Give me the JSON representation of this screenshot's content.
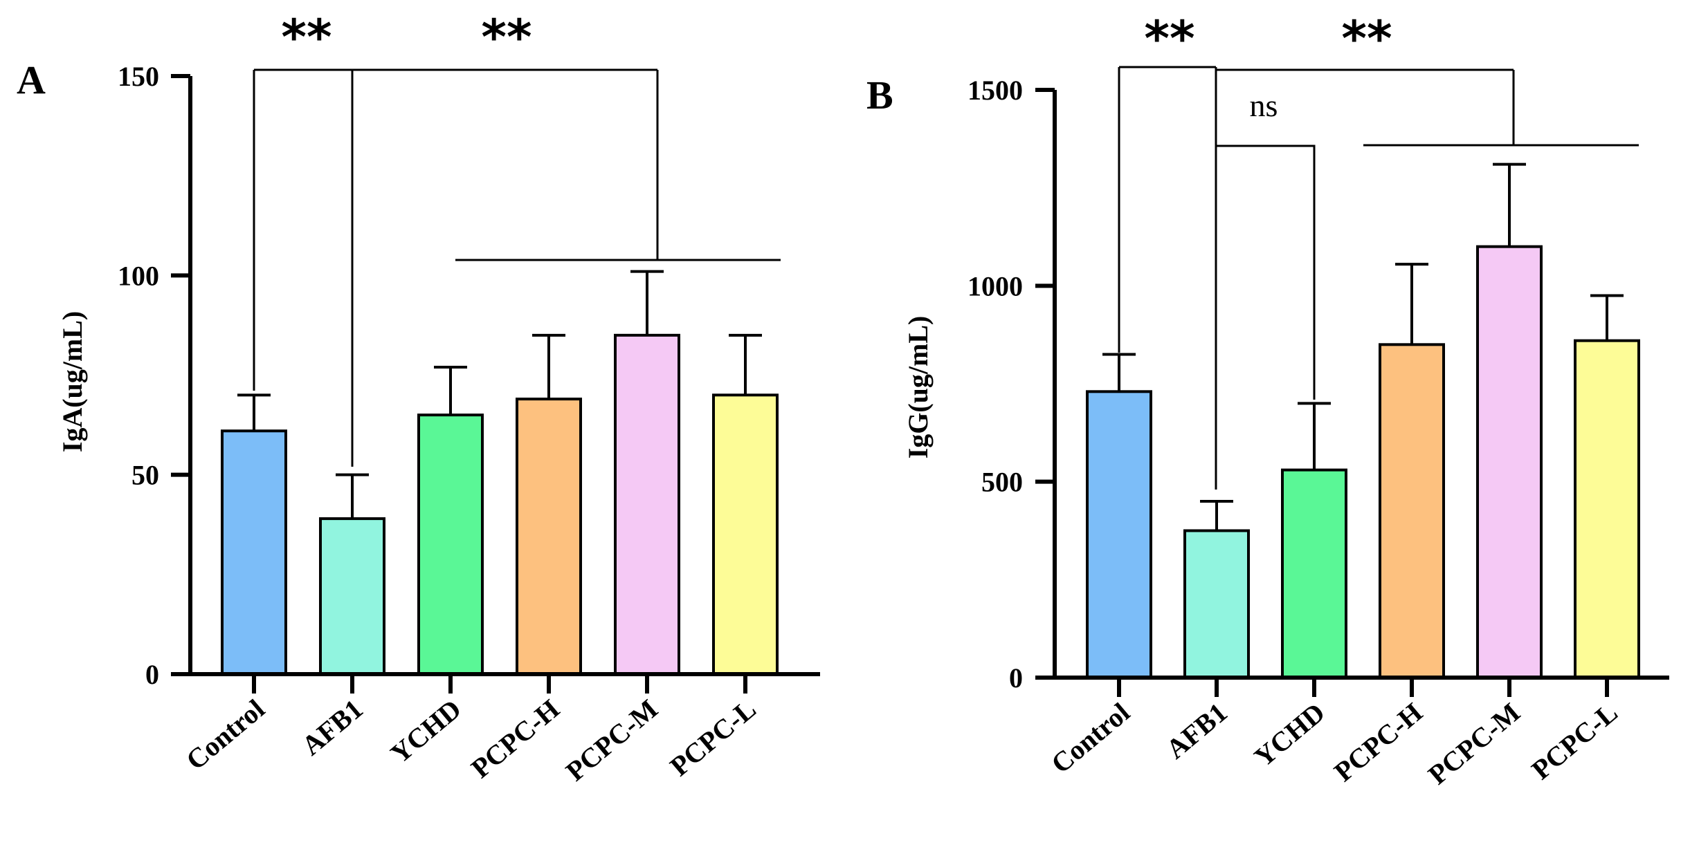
{
  "chart_data": [
    {
      "type": "bar",
      "panel_label": "A",
      "ylabel": "IgA(ug/mL)",
      "ylim": [
        0,
        150
      ],
      "yticks": [
        0,
        50,
        100,
        150
      ],
      "categories": [
        "Control",
        "AFB1",
        "YCHD",
        "PCPC-H",
        "PCPC-M",
        "PCPC-L"
      ],
      "values": [
        61,
        39,
        65,
        69,
        85,
        70
      ],
      "errors": [
        9,
        11,
        12,
        16,
        16,
        15
      ],
      "colors": [
        "#7cbdf8",
        "#91f4df",
        "#5af796",
        "#fdc17f",
        "#f5c9f5",
        "#fdfc97"
      ],
      "significance": [
        {
          "label": "**",
          "between": "Control vs AFB1"
        },
        {
          "label": "**",
          "between": "AFB1 vs YCHD, PCPC-H, PCPC-M, PCPC-L"
        }
      ]
    },
    {
      "type": "bar",
      "panel_label": "B",
      "ylabel": "IgG(ug/mL)",
      "ylim": [
        0,
        1500
      ],
      "yticks": [
        0,
        500,
        1000,
        1500
      ],
      "categories": [
        "Control",
        "AFB1",
        "YCHD",
        "PCPC-H",
        "PCPC-M",
        "PCPC-L"
      ],
      "values": [
        730,
        375,
        530,
        850,
        1100,
        860
      ],
      "errors": [
        95,
        75,
        170,
        205,
        210,
        115
      ],
      "colors": [
        "#7cbdf8",
        "#91f4df",
        "#5af796",
        "#fdc17f",
        "#f5c9f5",
        "#fdfc97"
      ],
      "significance": [
        {
          "label": "**",
          "between": "Control vs AFB1"
        },
        {
          "label": "ns",
          "between": "AFB1 vs YCHD"
        },
        {
          "label": "**",
          "between": "AFB1 vs PCPC-H, PCPC-M, PCPC-L"
        }
      ]
    }
  ]
}
